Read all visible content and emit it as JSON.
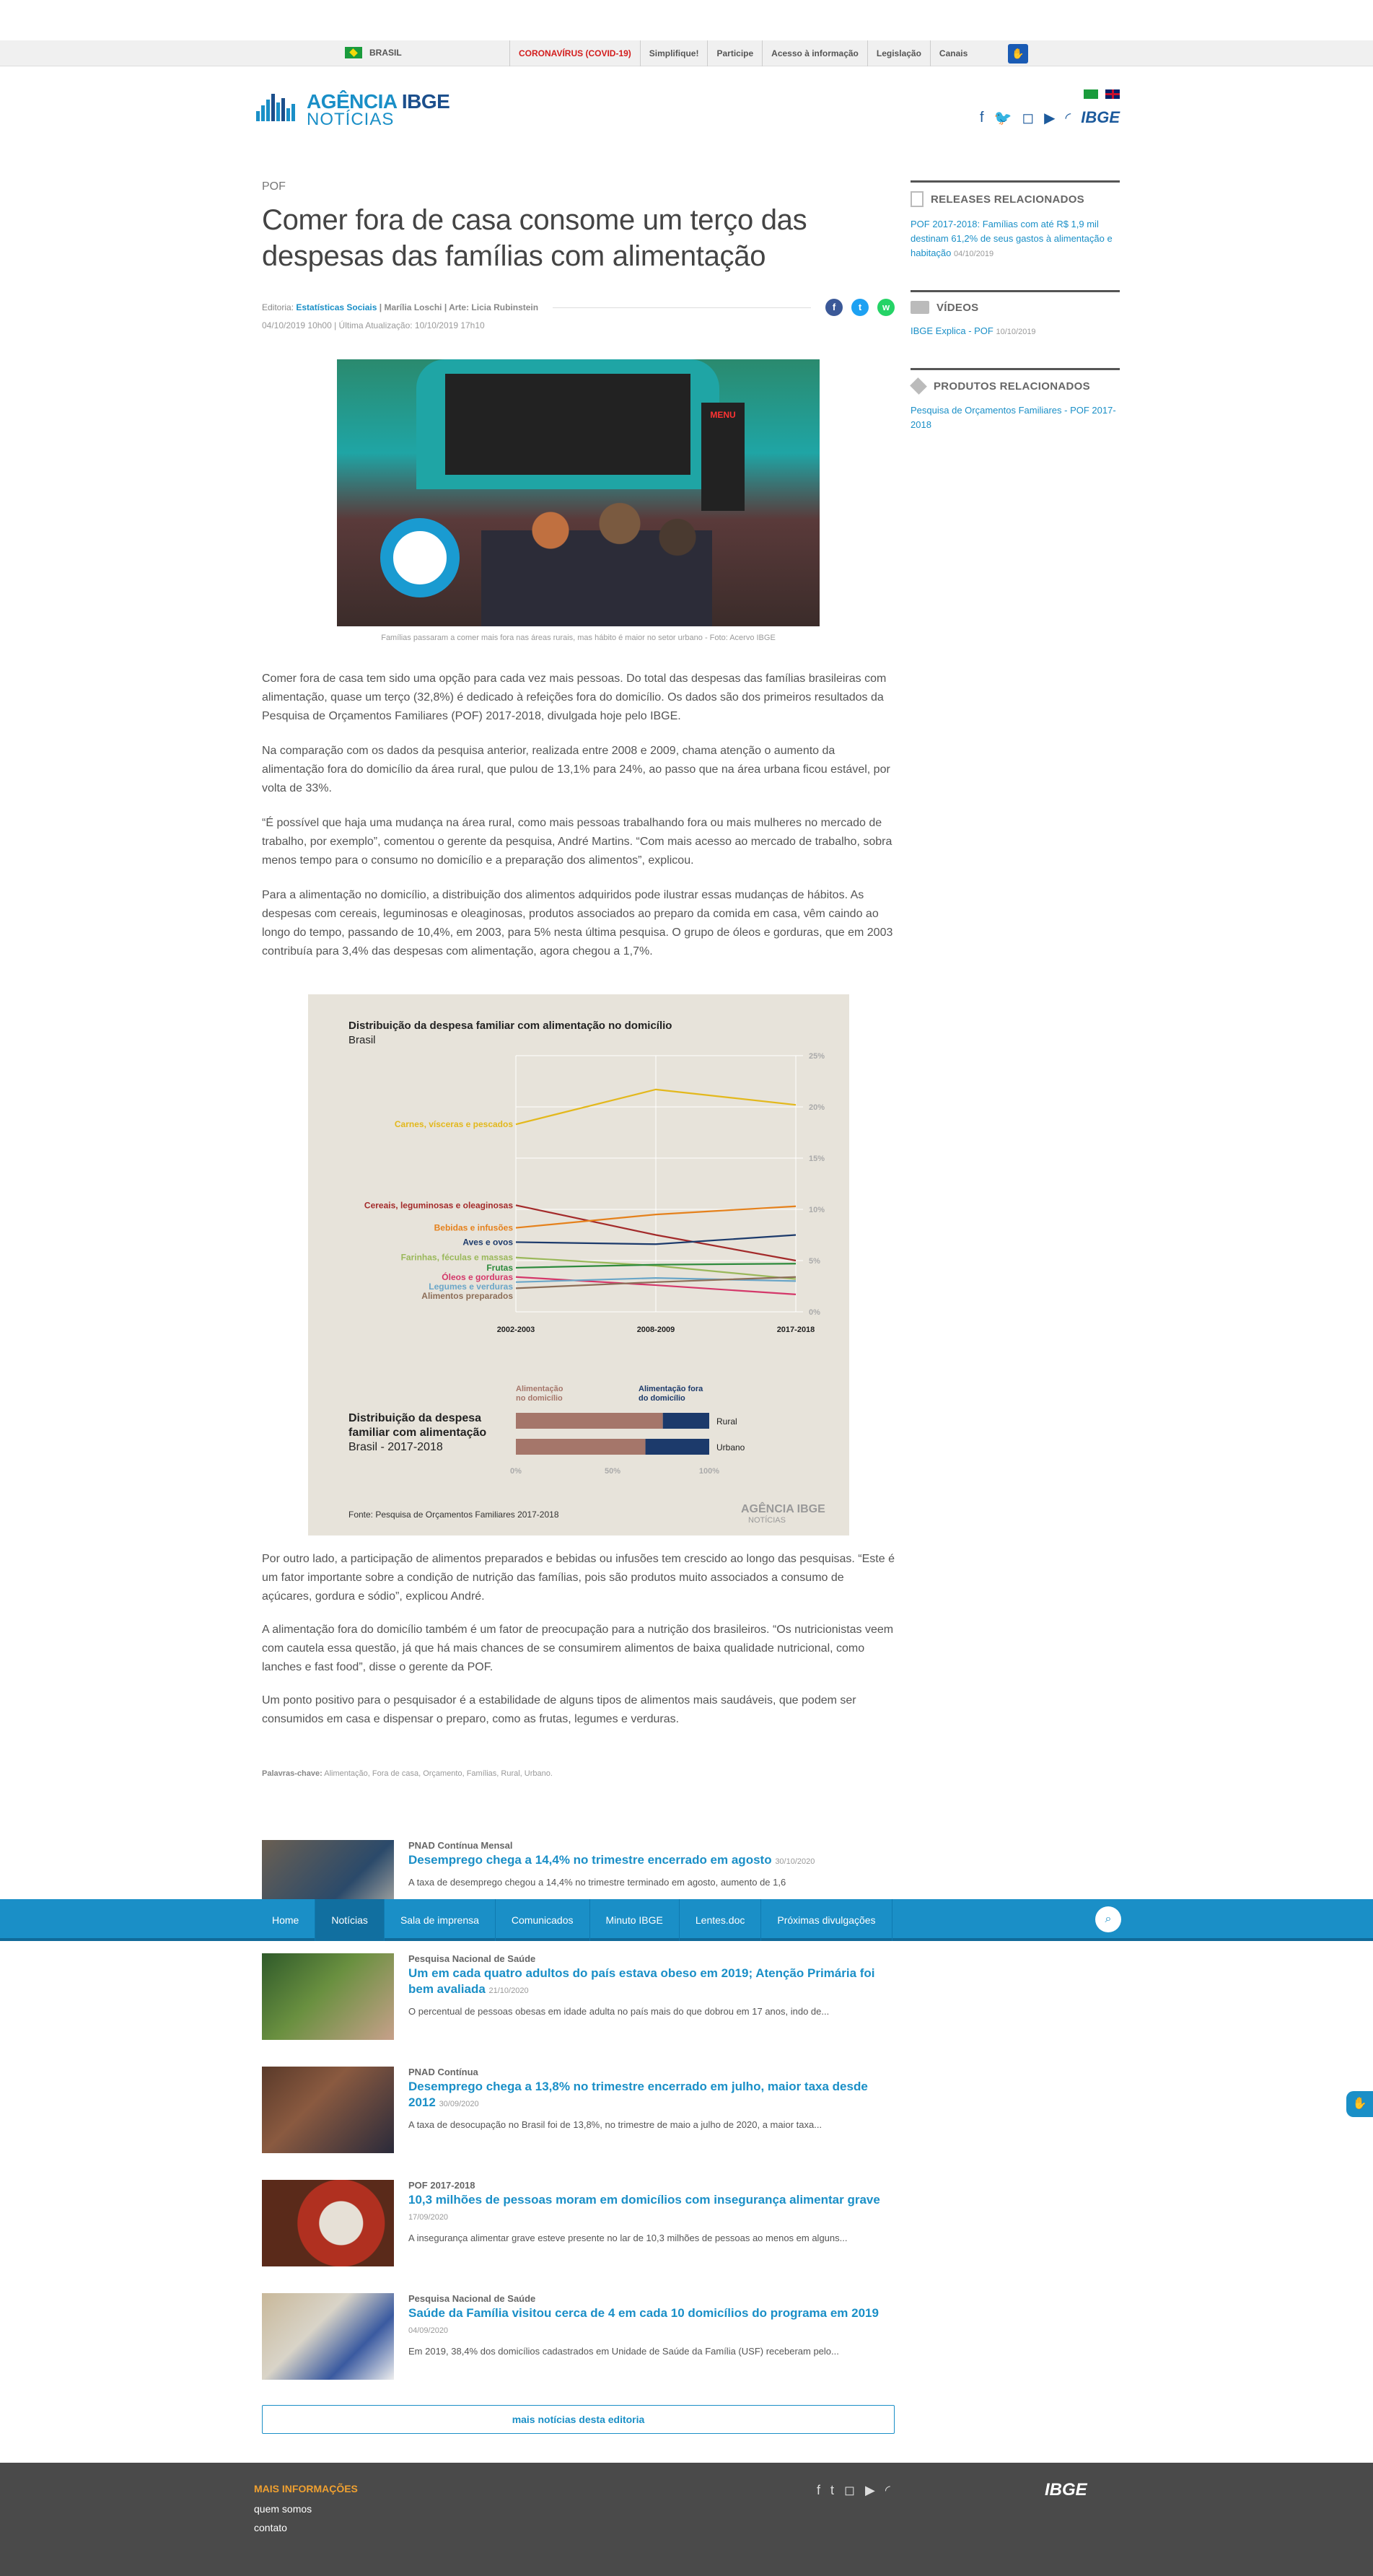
{
  "gov_bar": {
    "country": "BRASIL",
    "links": [
      "CORONAVÍRUS (COVID-19)",
      "Simplifique!",
      "Participe",
      "Acesso à informação",
      "Legislação",
      "Canais"
    ]
  },
  "header": {
    "logo_line1a": "AGÊNCIA",
    "logo_line1b": "IBGE",
    "logo_line2": "NOTÍCIAS",
    "ibge": "IBGE"
  },
  "article": {
    "kicker": "POF",
    "title": "Comer fora de casa consome um terço das despesas das famílias com alimentação",
    "meta_editoria_label": "Editoria:",
    "meta_editoria": "Estatísticas Sociais",
    "meta_author": " | Marília Loschi | Arte: Licia Rubinstein",
    "dates": "04/10/2019 10h00 | Última Atualização: 10/10/2019 17h10",
    "photo_caption": "Famílias passaram a comer mais fora nas áreas rurais, mas hábito é maior no setor urbano - Foto: Acervo IBGE",
    "photo_menu": "MENU",
    "paragraphs": [
      "Comer fora de casa tem sido uma opção para cada vez mais pessoas. Do total das despesas das famílias brasileiras com alimentação, quase um terço (32,8%) é dedicado à refeições fora do domicílio. Os dados são dos primeiros resultados da Pesquisa de Orçamentos Familiares (POF) 2017-2018, divulgada hoje pelo IBGE.",
      "Na comparação com os dados da pesquisa anterior, realizada entre 2008 e 2009, chama atenção o aumento da alimentação fora do domicílio da área rural, que pulou de 13,1% para 24%, ao passo que na área urbana ficou estável, por volta de 33%.",
      "“É possível que haja uma mudança na área rural, como mais pessoas trabalhando fora ou mais mulheres no mercado de trabalho, por exemplo”, comentou o gerente da pesquisa, André Martins. “Com mais acesso ao mercado de trabalho, sobra menos tempo para o consumo no domicílio e a preparação dos alimentos”, explicou.",
      "Para a alimentação no domicílio, a distribuição dos alimentos adquiridos pode ilustrar essas mudanças de hábitos. As despesas com cereais, leguminosas e oleaginosas, produtos associados ao preparo da comida em casa, vêm caindo ao longo do tempo, passando de 10,4%, em 2003, para 5% nesta última pesquisa. O grupo de óleos e gorduras, que em 2003 contribuía para 3,4% das despesas com alimentação, agora chegou a 1,7%."
    ],
    "paragraphs2": [
      "Por outro lado, a participação de alimentos preparados e bebidas ou infusões tem crescido ao longo das pesquisas. “Este é um fator importante sobre a condição de nutrição das famílias, pois são produtos muito associados a consumo de açúcares, gordura e sódio”, explicou André.",
      "A alimentação fora do domicílio também é um fator de preocupação para a nutrição dos brasileiros. “Os nutricionistas veem com cautela essa questão, já que há mais chances de se consumirem alimentos de baixa qualidade nutricional, como lanches e fast food”, disse o gerente da POF.",
      "Um ponto positivo para o pesquisador é a estabilidade de alguns tipos de alimentos mais saudáveis, que podem ser consumidos em casa e dispensar o preparo, como as frutas, legumes e verduras."
    ],
    "tags_label": "Palavras-chave:",
    "tags": " Alimentação, Fora de casa, Orçamento, Famílias, Rural, Urbano."
  },
  "chart_data": [
    {
      "type": "line",
      "title": "Distribuição da despesa familiar com alimentação no domicílio",
      "subtitle": "Brasil",
      "categories": [
        "2002-2003",
        "2008-2009",
        "2017-2018"
      ],
      "ylim": [
        0,
        25
      ],
      "yticks": [
        "0%",
        "5%",
        "10%",
        "15%",
        "20%",
        "25%"
      ],
      "series": [
        {
          "name": "Carnes, vísceras e pescados",
          "color": "#e3b81c",
          "values": [
            18.3,
            21.7,
            20.2
          ]
        },
        {
          "name": "Cereais, leguminosas e oleaginosas",
          "color": "#a32a2a",
          "values": [
            10.4,
            7.5,
            5.0
          ]
        },
        {
          "name": "Bebidas e infusões",
          "color": "#e5811c",
          "values": [
            8.2,
            9.5,
            10.3
          ]
        },
        {
          "name": "Aves e ovos",
          "color": "#1c3a6b",
          "values": [
            6.8,
            6.6,
            7.5
          ]
        },
        {
          "name": "Farinhas, féculas e massas",
          "color": "#9ab85a",
          "values": [
            5.3,
            4.5,
            3.2
          ]
        },
        {
          "name": "Frutas",
          "color": "#2d8a3c",
          "values": [
            4.3,
            4.6,
            4.7
          ]
        },
        {
          "name": "Óleos e gorduras",
          "color": "#d4386a",
          "values": [
            3.4,
            2.6,
            1.7
          ]
        },
        {
          "name": "Legumes e verduras",
          "color": "#6aa6c8",
          "values": [
            2.9,
            3.3,
            3.0
          ]
        },
        {
          "name": "Alimentos preparados",
          "color": "#8c6e58",
          "values": [
            2.3,
            2.9,
            3.4
          ]
        }
      ],
      "source": "Fonte: Pesquisa de Orçamentos Familiares 2017-2018"
    },
    {
      "type": "bar",
      "title": "Distribuição da despesa familiar com alimentação",
      "subtitle": "Brasil - 2017-2018",
      "categories": [
        "Rural",
        "Urbano"
      ],
      "series": [
        {
          "name": "Alimentação no domicílio",
          "color": "#a5766a",
          "values": [
            76,
            67
          ]
        },
        {
          "name": "Alimentação fora do domicílio",
          "color": "#1c3a6b",
          "values": [
            24,
            33
          ]
        }
      ],
      "xticks": [
        "0%",
        "50%",
        "100%"
      ]
    }
  ],
  "chart_text": {
    "title1": "Distribuição da despesa familiar com alimentação no domicílio",
    "subtitle1": "Brasil",
    "title2a": "Distribuição da despesa",
    "title2b": "familiar com alimentação",
    "subtitle2": "Brasil - 2017-2018",
    "legend_in1": "Alimentação",
    "legend_in2": "no domicílio",
    "legend_out1": "Alimentação fora",
    "legend_out2": "do domicílio",
    "source": "Fonte: Pesquisa de Orçamentos Familiares 2017-2018",
    "brand": "AGÊNCIA IBGE",
    "brand2": "NOTÍCIAS"
  },
  "aside": {
    "releases_title": "RELEASES RELACIONADOS",
    "releases_link": "POF 2017-2018: Famílias com até R$ 1,9 mil destinam 61,2% de seus gastos à alimentação e habitação",
    "releases_date": "04/10/2019",
    "videos_title": "VÍDEOS",
    "videos_link": "IBGE Explica - POF",
    "videos_date": "10/10/2019",
    "products_title": "PRODUTOS RELACIONADOS",
    "products_link": "Pesquisa de Orçamentos Familiares - POF 2017-2018"
  },
  "related": [
    {
      "cat": "PNAD Contínua Mensal",
      "title": "Desemprego chega a 14,4% no trimestre encerrado em agosto",
      "date": "30/10/2020",
      "excerpt": "A taxa de desemprego chegou a 14,4% no trimestre terminado em agosto, aumento de 1,6"
    },
    {
      "cat": "Pesquisa Nacional de Saúde",
      "title": "Um em cada quatro adultos do país estava obeso em 2019; Atenção Primária foi bem avaliada",
      "date": "21/10/2020",
      "excerpt": "O percentual de pessoas obesas em idade adulta no país mais do que dobrou em 17 anos, indo de..."
    },
    {
      "cat": "PNAD Contínua",
      "title": "Desemprego chega a 13,8% no trimestre encerrado em julho, maior taxa desde 2012",
      "date": "30/09/2020",
      "excerpt": "A taxa de desocupação no Brasil foi de 13,8%, no trimestre de maio a julho de 2020, a maior taxa..."
    },
    {
      "cat": "POF 2017-2018",
      "title": "10,3 milhões de pessoas moram em domicílios com insegurança alimentar grave",
      "date": "17/09/2020",
      "excerpt": "A insegurança alimentar grave esteve presente no lar de 10,3 milhões de pessoas ao menos em alguns..."
    },
    {
      "cat": "Pesquisa Nacional de Saúde",
      "title": "Saúde da Família visitou cerca de 4 em cada 10 domicílios do programa em 2019",
      "date": "04/09/2020",
      "excerpt": "Em 2019, 38,4% dos domicílios cadastrados em Unidade de Saúde da Família (USF) receberam pelo..."
    }
  ],
  "more_news": "mais notícias desta editoria",
  "navbar": [
    "Home",
    "Notícias",
    "Sala de imprensa",
    "Comunicados",
    "Minuto IBGE",
    "Lentes.doc",
    "Próximas divulgações"
  ],
  "footer": {
    "title": "MAIS INFORMAÇÕES",
    "links": [
      "quem somos",
      "contato"
    ],
    "ibge": "IBGE"
  }
}
